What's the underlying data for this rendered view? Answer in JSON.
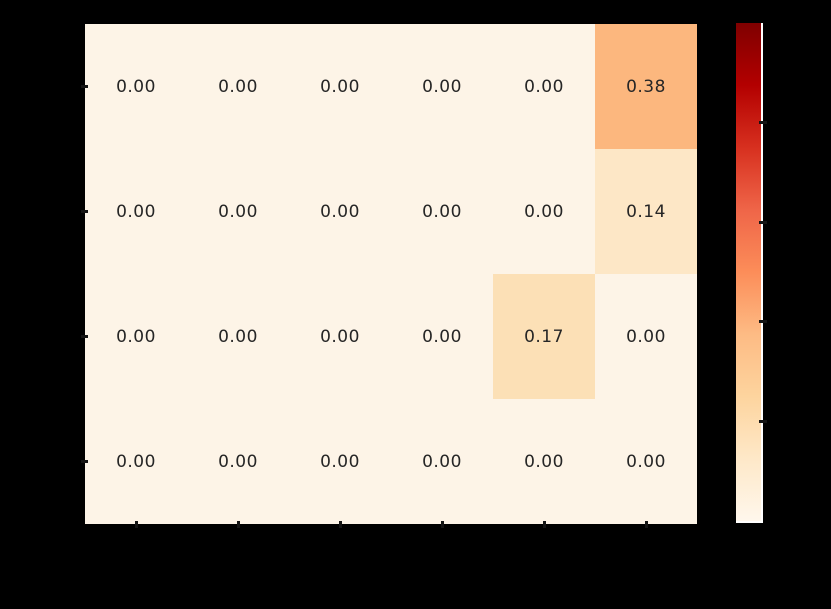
{
  "chart_data": {
    "type": "heatmap",
    "rows": 4,
    "cols": 6,
    "values": [
      [
        0.0,
        0.0,
        0.0,
        0.0,
        0.0,
        0.38
      ],
      [
        0.0,
        0.0,
        0.0,
        0.0,
        0.0,
        0.14
      ],
      [
        0.0,
        0.0,
        0.0,
        0.0,
        0.17,
        0.0
      ],
      [
        0.0,
        0.0,
        0.0,
        0.0,
        0.0,
        0.0
      ]
    ],
    "cell_labels": [
      [
        "0.00",
        "0.00",
        "0.00",
        "0.00",
        "0.00",
        "0.38"
      ],
      [
        "0.00",
        "0.00",
        "0.00",
        "0.00",
        "0.00",
        "0.14"
      ],
      [
        "0.00",
        "0.00",
        "0.00",
        "0.00",
        "0.17",
        "0.00"
      ],
      [
        "0.00",
        "0.00",
        "0.00",
        "0.00",
        "0.00",
        "0.00"
      ]
    ],
    "cell_colors": [
      [
        "#fdf4e7",
        "#fdf4e7",
        "#fdf4e7",
        "#fdf4e7",
        "#fdf4e7",
        "#fcb77e"
      ],
      [
        "#fdf4e7",
        "#fdf4e7",
        "#fdf4e7",
        "#fdf4e7",
        "#fdf4e7",
        "#fde7c6"
      ],
      [
        "#fdf4e7",
        "#fdf4e7",
        "#fdf4e7",
        "#fdf4e7",
        "#fce0b6",
        "#fdf4e7"
      ],
      [
        "#fdf4e7",
        "#fdf4e7",
        "#fdf4e7",
        "#fdf4e7",
        "#fdf4e7",
        "#fdf4e7"
      ]
    ],
    "annotation_text_color": "#262626",
    "colormap": "OrRd",
    "vmin": 0.0,
    "vmax": 1.0,
    "grid": false,
    "axes": {
      "x_tick_count": 6,
      "y_tick_count": 4,
      "tick_color": "#141414",
      "tick_labels_visible": false
    },
    "colorbar": {
      "position": "right",
      "gradient_top_to_bottom": [
        "#7f0000",
        "#b30000",
        "#d7301f",
        "#ef6548",
        "#fc8d59",
        "#fdbb84",
        "#fdd49e",
        "#fee8c8",
        "#fff7ec"
      ],
      "tick_fractions_from_top": [
        0.2,
        0.4,
        0.6,
        0.8
      ],
      "tick_values": [
        0.8,
        0.6,
        0.4,
        0.2
      ],
      "edge_color": "#ffffff",
      "tick_labels_visible": false
    },
    "background_color": "#000000",
    "cell_background_min_color": "#fff7ec",
    "cell_background_max_color": "#7f0000"
  }
}
